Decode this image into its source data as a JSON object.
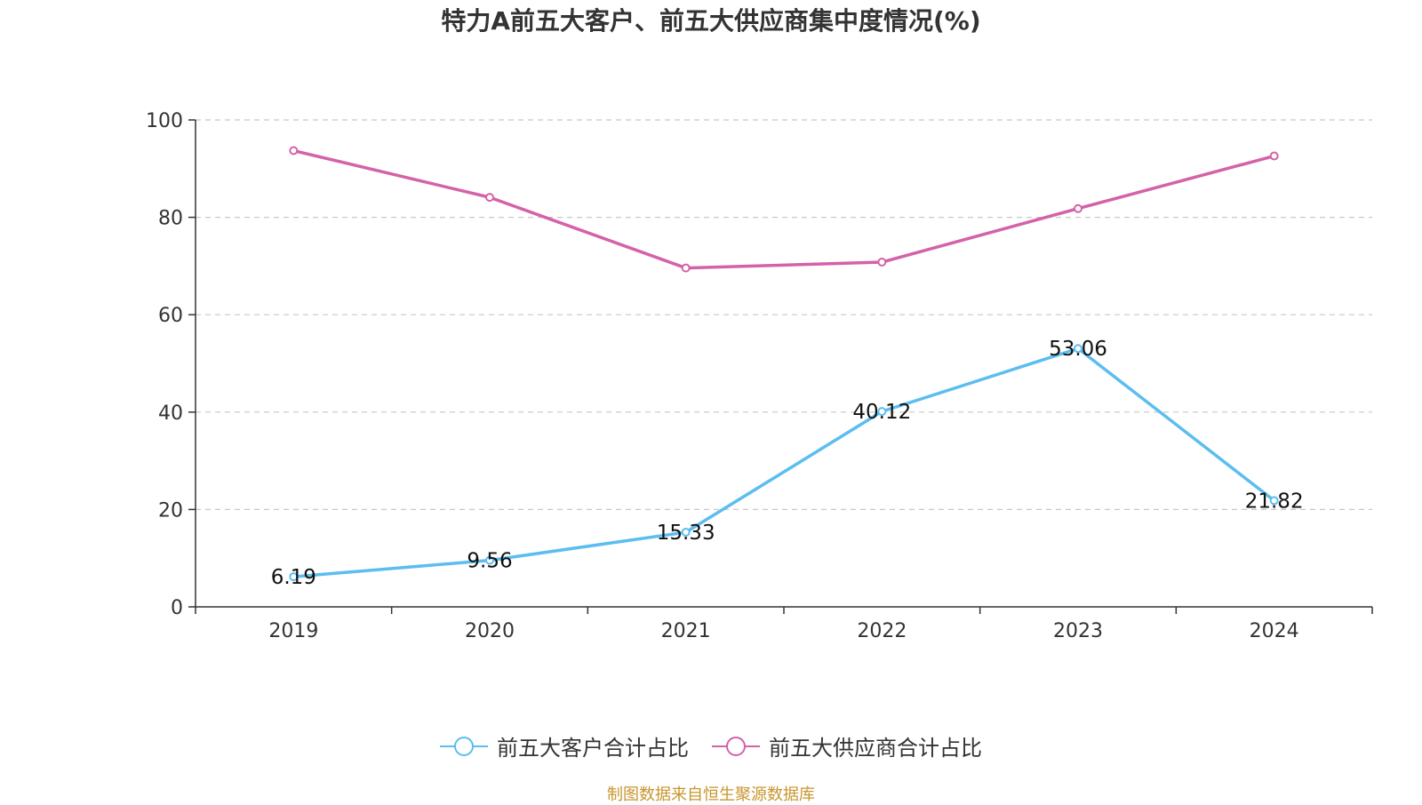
{
  "chart_data": {
    "type": "line",
    "title": "特力A前五大客户、前五大供应商集中度情况(%)",
    "categories": [
      "2019",
      "2020",
      "2021",
      "2022",
      "2023",
      "2024"
    ],
    "ylim": [
      0,
      100
    ],
    "yticks": [
      0,
      20,
      40,
      60,
      80,
      100
    ],
    "grid": true,
    "legend_position": "bottom",
    "series": [
      {
        "name": "前五大客户合计占比",
        "color": "#5bbdf0",
        "show_labels": true,
        "values": [
          6.19,
          9.56,
          15.33,
          40.12,
          53.06,
          21.82
        ],
        "labels": [
          "6.19",
          "9.56",
          "15.33",
          "40.12",
          "53.06",
          "21.82"
        ]
      },
      {
        "name": "前五大供应商合计占比",
        "color": "#d462a8",
        "show_labels": false,
        "values": [
          93.7,
          84.1,
          69.6,
          70.8,
          81.8,
          92.6
        ]
      }
    ]
  },
  "footer": {
    "source": "制图数据来自恒生聚源数据库"
  }
}
